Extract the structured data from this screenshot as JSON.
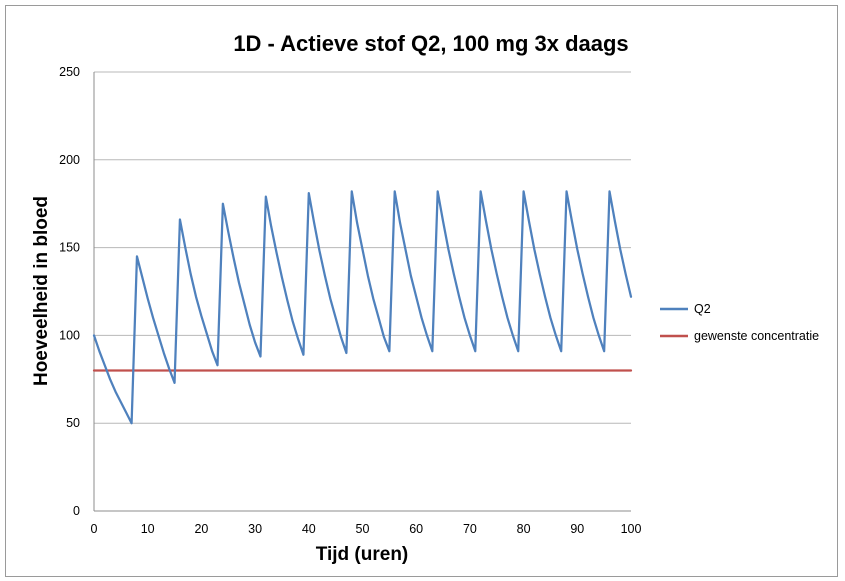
{
  "chart_data": {
    "type": "line",
    "title": "1D - Actieve stof Q2, 100 mg 3x daags",
    "xlabel": "Tijd (uren)",
    "ylabel": "Hoeveelheid in bloed",
    "xlim": [
      0,
      100
    ],
    "ylim": [
      0,
      250
    ],
    "x_ticks": [
      0,
      10,
      20,
      30,
      40,
      50,
      60,
      70,
      80,
      90,
      100
    ],
    "y_ticks": [
      0,
      50,
      100,
      150,
      200,
      250
    ],
    "grid": "horizontal",
    "legend_position": "right",
    "series": [
      {
        "name": "Q2",
        "color": "#4f81bd",
        "points": [
          [
            0,
            100
          ],
          [
            1,
            91
          ],
          [
            2,
            83
          ],
          [
            3,
            75
          ],
          [
            4,
            68
          ],
          [
            5,
            62
          ],
          [
            6,
            56
          ],
          [
            7,
            50
          ],
          [
            8,
            145
          ],
          [
            9,
            133
          ],
          [
            10,
            121
          ],
          [
            11,
            110
          ],
          [
            12,
            100
          ],
          [
            13,
            90
          ],
          [
            14,
            81
          ],
          [
            15,
            73
          ],
          [
            16,
            166
          ],
          [
            17,
            150
          ],
          [
            18,
            135
          ],
          [
            19,
            122
          ],
          [
            20,
            111
          ],
          [
            21,
            101
          ],
          [
            22,
            91
          ],
          [
            23,
            83
          ],
          [
            24,
            175
          ],
          [
            25,
            159
          ],
          [
            26,
            144
          ],
          [
            27,
            130
          ],
          [
            28,
            118
          ],
          [
            29,
            106
          ],
          [
            30,
            96
          ],
          [
            31,
            88
          ],
          [
            32,
            179
          ],
          [
            33,
            162
          ],
          [
            34,
            147
          ],
          [
            35,
            133
          ],
          [
            36,
            120
          ],
          [
            37,
            108
          ],
          [
            38,
            98
          ],
          [
            39,
            89
          ],
          [
            40,
            181
          ],
          [
            41,
            164
          ],
          [
            42,
            148
          ],
          [
            43,
            134
          ],
          [
            44,
            121
          ],
          [
            45,
            110
          ],
          [
            46,
            99
          ],
          [
            47,
            90
          ],
          [
            48,
            182
          ],
          [
            49,
            164
          ],
          [
            50,
            149
          ],
          [
            51,
            134
          ],
          [
            52,
            121
          ],
          [
            53,
            110
          ],
          [
            54,
            99
          ],
          [
            55,
            91
          ],
          [
            56,
            182
          ],
          [
            57,
            164
          ],
          [
            58,
            149
          ],
          [
            59,
            134
          ],
          [
            60,
            122
          ],
          [
            61,
            110
          ],
          [
            62,
            100
          ],
          [
            63,
            91
          ],
          [
            64,
            182
          ],
          [
            65,
            165
          ],
          [
            66,
            149
          ],
          [
            67,
            135
          ],
          [
            68,
            122
          ],
          [
            69,
            110
          ],
          [
            70,
            100
          ],
          [
            71,
            91
          ],
          [
            72,
            182
          ],
          [
            73,
            165
          ],
          [
            74,
            149
          ],
          [
            75,
            135
          ],
          [
            76,
            122
          ],
          [
            77,
            110
          ],
          [
            78,
            100
          ],
          [
            79,
            91
          ],
          [
            80,
            182
          ],
          [
            81,
            165
          ],
          [
            82,
            149
          ],
          [
            83,
            135
          ],
          [
            84,
            122
          ],
          [
            85,
            110
          ],
          [
            86,
            100
          ],
          [
            87,
            91
          ],
          [
            88,
            182
          ],
          [
            89,
            165
          ],
          [
            90,
            149
          ],
          [
            91,
            135
          ],
          [
            92,
            122
          ],
          [
            93,
            110
          ],
          [
            94,
            100
          ],
          [
            95,
            91
          ],
          [
            96,
            182
          ],
          [
            97,
            165
          ],
          [
            98,
            149
          ],
          [
            99,
            135
          ],
          [
            100,
            122
          ]
        ]
      },
      {
        "name": "gewenste concentratie",
        "color": "#c0504d",
        "points": [
          [
            0,
            80
          ],
          [
            100,
            80
          ]
        ]
      }
    ]
  }
}
